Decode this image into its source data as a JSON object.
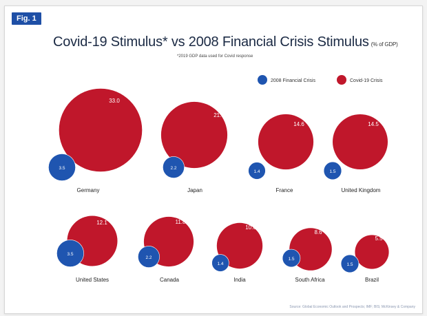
{
  "figure": {
    "badge": "Fig. 1",
    "title": "Covid-19 Stimulus* vs 2008 Financial Crisis Stimulus",
    "title_unit": "(% of GDP)",
    "footnote": "*2019 GDP data used for Covid response",
    "source": "Source: Global Economic Outlook and Prospects; IMF; BIS; McKinsey & Company"
  },
  "colors": {
    "crisis_2008": "#1f55b0",
    "covid": "#c0172b",
    "badge": "#1e4fa6"
  },
  "chart_data": {
    "type": "bubble",
    "unit": "% of GDP",
    "legend_position": "top-right",
    "series": [
      {
        "name": "2008 Financial Crisis",
        "color": "#1f55b0"
      },
      {
        "name": "Covid-19 Crisis",
        "color": "#c0172b"
      }
    ],
    "categories": [
      "Germany",
      "Japan",
      "France",
      "United Kingdom",
      "United States",
      "Canada",
      "India",
      "South Africa",
      "Brazil"
    ],
    "crisis_2008": [
      3.5,
      2.2,
      1.4,
      1.5,
      3.5,
      2.2,
      1.4,
      1.5,
      1.5
    ],
    "covid_19": [
      33.0,
      21.0,
      14.6,
      14.5,
      12.1,
      11.8,
      10.0,
      8.6,
      5.5
    ]
  }
}
